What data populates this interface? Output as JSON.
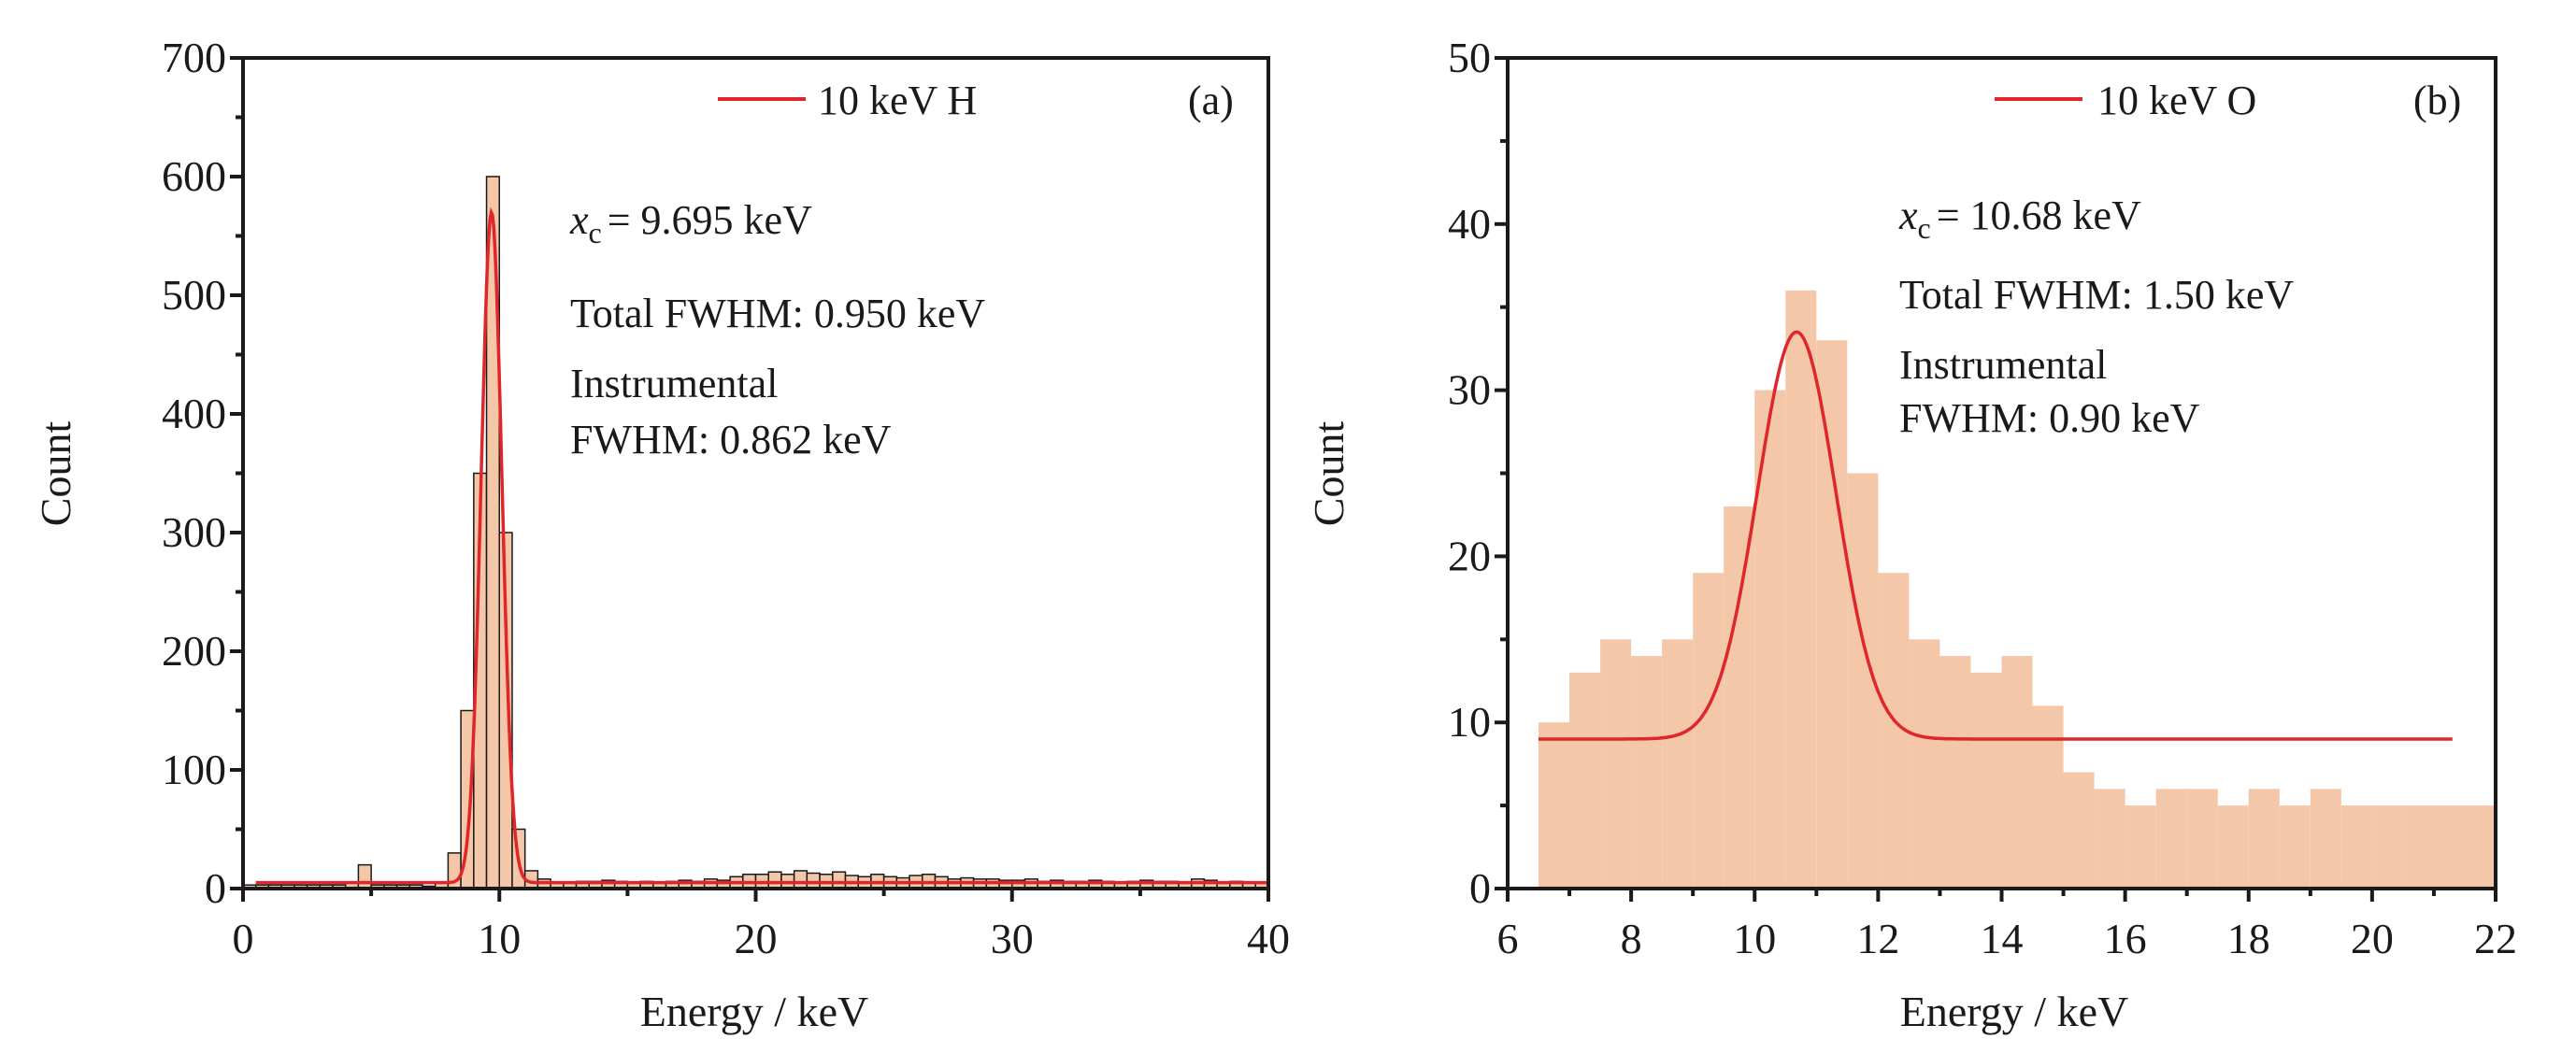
{
  "colors": {
    "histogram": "#f4c7a8",
    "fit": "#e0252b",
    "outline": "#1a1a1a",
    "axis": "#1a1a1a"
  },
  "chart_data": [
    {
      "type": "bar",
      "panel_label": "(a)",
      "xlabel": "Energy / keV",
      "ylabel": "Count",
      "xlim": [
        0,
        40
      ],
      "ylim": [
        0,
        700
      ],
      "xticks": [
        0,
        10,
        20,
        30,
        40
      ],
      "yticks": [
        0,
        100,
        200,
        300,
        400,
        500,
        600,
        700
      ],
      "legend": {
        "label": "10 keV H",
        "placement": "top-right"
      },
      "annotations": {
        "xc_symbol": "x",
        "xc_sub": "c",
        "xc_value": "= 9.695 keV",
        "total_fwhm": "Total FWHM: 0.950 keV",
        "instr_line1": "Instrumental",
        "instr_line2": "FWHM: 0.862 keV"
      },
      "histogram": {
        "bin_width": 0.5,
        "x_start": 0,
        "values": [
          3,
          3,
          3,
          3,
          3,
          3,
          3,
          3,
          5,
          20,
          3,
          3,
          3,
          3,
          2,
          5,
          30,
          150,
          350,
          600,
          300,
          50,
          15,
          8,
          5,
          5,
          6,
          6,
          7,
          6,
          5,
          6,
          5,
          6,
          7,
          6,
          8,
          7,
          10,
          12,
          12,
          14,
          12,
          15,
          13,
          12,
          14,
          11,
          10,
          12,
          10,
          9,
          11,
          12,
          10,
          8,
          9,
          8,
          8,
          7,
          7,
          8,
          6,
          7,
          6,
          6,
          7,
          6,
          5,
          6,
          7,
          6,
          6,
          5,
          8,
          7,
          5,
          6,
          5,
          5
        ]
      },
      "fit": {
        "label": "10 keV H",
        "xc": 9.695,
        "fwhm": 0.95,
        "amplitude": 565,
        "baseline": 5,
        "x_range": [
          0.5,
          40
        ]
      }
    },
    {
      "type": "bar",
      "panel_label": "(b)",
      "xlabel": "Energy / keV",
      "ylabel": "Count",
      "xlim": [
        6,
        22
      ],
      "ylim": [
        0,
        50
      ],
      "xticks": [
        6,
        8,
        10,
        12,
        14,
        16,
        18,
        20,
        22
      ],
      "yticks": [
        0,
        10,
        20,
        30,
        40,
        50
      ],
      "legend": {
        "label": "10 keV O",
        "placement": "top-right"
      },
      "annotations": {
        "xc_symbol": "x",
        "xc_sub": "c",
        "xc_value": "= 10.68 keV",
        "total_fwhm": "Total FWHM: 1.50 keV",
        "instr_line1": "Instrumental",
        "instr_line2": "FWHM: 0.90 keV"
      },
      "histogram": {
        "bin_width": 0.5,
        "x_start": 6.5,
        "values": [
          10,
          13,
          15,
          14,
          15,
          19,
          23,
          30,
          36,
          33,
          25,
          19,
          15,
          14,
          13,
          14,
          11,
          7,
          6,
          5,
          6,
          6,
          5,
          6,
          5,
          6,
          5,
          5,
          5,
          5,
          5
        ]
      },
      "fit": {
        "label": "10 keV O",
        "xc": 10.68,
        "fwhm": 1.5,
        "amplitude": 24.5,
        "baseline": 9,
        "x_range": [
          6.5,
          21.3
        ]
      }
    }
  ]
}
